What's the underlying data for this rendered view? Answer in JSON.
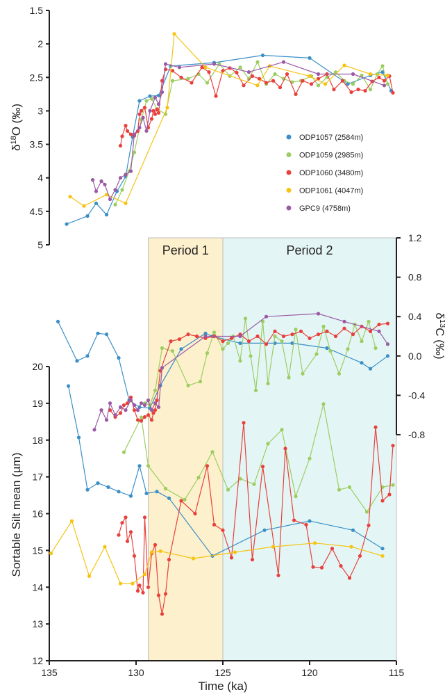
{
  "colors": {
    "ODP1057": "#3a8fc7",
    "ODP1059": "#9ccd61",
    "ODP1060": "#e8403c",
    "ODP1061": "#f6c312",
    "GPC9": "#9b5aa5",
    "period1_fill": "#fdf0cc",
    "period2_fill": "#e3f6f5"
  },
  "chart_data": [
    {
      "type": "line",
      "panel": "d18O",
      "ylabel": "δ18O (‰)",
      "ylabel_base": "δ",
      "ylabel_sup": "18",
      "ylabel_rest": "O (‰)",
      "ylim": [
        1.5,
        5
      ],
      "y_inverted": true,
      "yticks": [
        "1.5",
        "2",
        "2.5",
        "3",
        "3.5",
        "4",
        "4.5",
        "5"
      ],
      "legend_position": "right",
      "legend": [
        "ODP1057 (2584m)",
        "ODP1059 (2985m)",
        "ODP1060 (3480m)",
        "ODP1061 (4047m)",
        "GPC9 (4758m)"
      ],
      "series": [
        {
          "key": "ODP1057",
          "name": "ODP1057 (2584m)",
          "x": [
            134,
            132.8,
            132.3,
            131.7,
            131.1,
            130.6,
            130.2,
            129.8,
            129.2,
            128.7,
            128.0,
            125.5,
            122.7,
            120.0,
            117.8,
            116.5,
            115.8,
            115.3
          ],
          "y": [
            4.69,
            4.57,
            4.38,
            4.55,
            4.2,
            3.98,
            3.39,
            2.85,
            2.78,
            2.77,
            2.33,
            2.28,
            2.17,
            2.21,
            2.6,
            2.47,
            2.42,
            2.7
          ]
        },
        {
          "key": "ODP1059",
          "name": "ODP1059 (2985m)",
          "x": [
            131.2,
            130.8,
            130.4,
            130.1,
            129.7,
            129.4,
            129.1,
            128.8,
            128.3,
            127.9,
            127.0,
            126.4,
            125.9,
            125.2,
            124.6,
            124.0,
            123.5,
            123.0,
            122.5,
            122.0,
            121.5,
            121.0,
            120.5,
            119.9,
            119.5,
            119.0,
            118.5,
            118.0,
            117.5,
            117.0,
            116.5,
            116.1,
            115.8,
            115.5
          ],
          "y": [
            4.4,
            4.18,
            3.9,
            3.62,
            3.13,
            2.85,
            2.82,
            2.97,
            3.05,
            2.55,
            2.52,
            2.45,
            2.58,
            2.3,
            2.48,
            2.35,
            2.52,
            2.27,
            2.6,
            2.45,
            2.52,
            2.57,
            2.55,
            2.48,
            2.62,
            2.5,
            2.42,
            2.55,
            2.6,
            2.47,
            2.68,
            2.45,
            2.33,
            2.6
          ]
        },
        {
          "key": "ODP1060",
          "name": "ODP1060 (3480m)",
          "x": [
            130.9,
            130.8,
            130.6,
            130.5,
            130.3,
            130.1,
            129.9,
            129.8,
            129.7,
            129.5,
            129.3,
            129.1,
            129.0,
            128.9,
            128.8,
            128.7,
            128.5,
            128.3,
            127.9,
            127.4,
            126.8,
            126.2,
            125.8,
            125.4,
            125.0,
            124.6,
            124.2,
            123.8,
            123.3,
            122.9,
            122.5,
            122.1,
            121.7,
            121.3,
            120.8,
            120.4,
            119.9,
            119.5,
            119.0,
            118.6,
            118.1,
            117.6,
            117.2,
            116.8,
            116.4,
            116.0,
            115.7,
            115.4,
            115.2
          ],
          "y": [
            3.52,
            3.38,
            3.22,
            3.3,
            3.35,
            3.37,
            3.3,
            3.05,
            3.0,
            2.95,
            3.25,
            3.12,
            3.0,
            3.05,
            2.98,
            3.03,
            2.55,
            2.38,
            2.4,
            2.5,
            2.58,
            2.35,
            2.42,
            2.78,
            2.4,
            2.36,
            2.43,
            2.62,
            2.48,
            2.52,
            2.58,
            2.55,
            2.65,
            2.45,
            2.75,
            2.55,
            2.6,
            2.52,
            2.45,
            2.68,
            2.55,
            2.72,
            2.68,
            2.7,
            2.56,
            2.5,
            2.55,
            2.48,
            2.73
          ]
        },
        {
          "key": "ODP1061",
          "name": "ODP1061 (4047m)",
          "x": [
            133.8,
            133.0,
            131.7,
            130.6,
            128.2,
            127.8,
            126.0,
            123.0,
            122.3,
            120.0,
            119.1,
            118.0,
            116.5,
            115.5
          ],
          "y": [
            4.28,
            4.42,
            4.25,
            4.38,
            2.95,
            1.85,
            2.35,
            2.62,
            2.33,
            2.48,
            2.6,
            2.32,
            2.45,
            2.47
          ]
        },
        {
          "key": "GPC9",
          "name": "GPC9 (4758m)",
          "x": [
            132.5,
            132.3,
            132.0,
            131.8,
            131.5,
            131.2,
            130.9,
            130.6,
            130.3,
            130.1,
            129.8,
            129.6,
            129.4,
            129.2,
            128.9,
            128.7,
            128.5,
            128.3,
            127.5,
            125.5,
            123.5,
            121.5,
            119.5,
            117.5,
            115.7
          ],
          "y": [
            4.03,
            4.2,
            4.05,
            4.1,
            4.32,
            4.18,
            4.0,
            3.95,
            3.9,
            3.35,
            3.25,
            3.1,
            3.3,
            3.0,
            2.8,
            2.9,
            2.72,
            2.3,
            2.35,
            2.3,
            2.42,
            2.27,
            2.45,
            2.45,
            2.62
          ]
        }
      ]
    },
    {
      "type": "line",
      "panel": "d13C",
      "ylabel": "δ13C (‰)",
      "ylabel_base": "δ",
      "ylabel_sup": "13",
      "ylabel_rest": "C (‰)",
      "ylim": [
        -0.8,
        1.2
      ],
      "yticks": [
        "-0.8",
        "-0.4",
        "0.0",
        "0.4",
        "0.8",
        "1.2"
      ],
      "axis_side": "right",
      "series": [
        {
          "key": "ODP1057",
          "name": "ODP1057 (2584m)",
          "x": [
            134.5,
            133.4,
            132.8,
            132.2,
            131.7,
            131.0,
            130.4,
            129.8,
            129.2,
            128.6,
            127.4,
            126.0,
            125.6,
            124.0,
            122.0,
            121.0,
            119.0,
            117.0,
            116.5,
            115.5
          ],
          "y": [
            0.35,
            -0.05,
            0.0,
            0.23,
            0.22,
            -0.02,
            -0.45,
            -0.52,
            -0.53,
            -0.3,
            0.07,
            0.23,
            0.2,
            0.13,
            0.13,
            0.13,
            0.08,
            -0.07,
            -0.13,
            0.0
          ]
        },
        {
          "key": "ODP1059",
          "name": "ODP1059 (2985m)",
          "x": [
            129.5,
            129.2,
            128.9,
            128.5,
            127.9,
            127.0,
            126.3,
            125.9,
            125.5,
            125.0,
            124.7,
            124.4,
            124.0,
            123.7,
            123.4,
            123.1,
            122.7,
            122.4,
            122.0,
            121.6,
            121.2,
            120.8,
            120.4,
            119.6,
            119.2,
            118.8,
            118.3,
            117.8,
            117.4,
            117.0,
            116.6,
            116.2
          ],
          "y": [
            -0.48,
            -0.5,
            -0.35,
            0.08,
            0.05,
            -0.3,
            -0.26,
            0.03,
            0.24,
            0.07,
            0.13,
            0.2,
            -0.05,
            0.38,
            0.0,
            -0.35,
            0.35,
            -0.28,
            0.2,
            0.15,
            -0.22,
            0.27,
            -0.18,
            0.02,
            0.3,
            0.05,
            -0.18,
            0.07,
            0.32,
            0.15,
            0.35,
            0.08
          ]
        },
        {
          "key": "ODP1060",
          "name": "ODP1060 (3480m)",
          "x": [
            131.5,
            131.2,
            130.9,
            130.7,
            130.5,
            130.3,
            130.1,
            129.9,
            129.7,
            129.5,
            129.3,
            129.1,
            129.0,
            128.9,
            128.8,
            128.6,
            128.0,
            127.5,
            127.0,
            126.5,
            126.0,
            125.5,
            125.0,
            124.5,
            124.0,
            123.5,
            123.0,
            122.5,
            122.0,
            121.5,
            121.0,
            120.5,
            120.0,
            119.5,
            119.0,
            118.5,
            118.0,
            117.5,
            117.0,
            116.5,
            116.0,
            115.5
          ],
          "y": [
            -0.55,
            -0.62,
            -0.58,
            -0.5,
            -0.48,
            -0.42,
            -0.55,
            -0.65,
            -0.66,
            -0.62,
            -0.6,
            -0.65,
            -0.58,
            -0.55,
            -0.45,
            -0.15,
            0.15,
            0.17,
            0.22,
            0.2,
            0.18,
            0.2,
            0.15,
            0.18,
            0.22,
            0.15,
            0.2,
            0.12,
            0.25,
            0.2,
            0.22,
            0.25,
            0.18,
            0.22,
            0.25,
            0.2,
            0.28,
            0.22,
            0.3,
            0.25,
            0.32,
            0.33
          ]
        },
        {
          "key": "GPC9",
          "name": "GPC9 (4758m)",
          "x": [
            132.4,
            132.0,
            131.7,
            131.5,
            131.2,
            130.9,
            130.6,
            130.3,
            130.1,
            129.9,
            129.7,
            129.5,
            129.3,
            129.1,
            128.9,
            128.7,
            128.5,
            126.0,
            124.0,
            122.5,
            119.5,
            118.0,
            116.0,
            115.5
          ],
          "y": [
            -0.75,
            -0.55,
            -0.65,
            -0.48,
            -0.6,
            -0.52,
            -0.55,
            -0.45,
            -0.5,
            -0.55,
            -0.48,
            -0.5,
            -0.45,
            -0.55,
            -0.48,
            -0.52,
            -0.12,
            0.2,
            0.2,
            0.4,
            0.43,
            0.35,
            0.25,
            0.12
          ]
        }
      ]
    },
    {
      "type": "line",
      "panel": "silt",
      "ylabel": "Sortable Silt mean (µm)",
      "xlabel": "Time (ka)",
      "ylim": [
        12,
        20
      ],
      "yticks": [
        "12",
        "13",
        "14",
        "15",
        "16",
        "17",
        "18",
        "19",
        "20"
      ],
      "xlim": [
        135,
        115
      ],
      "xticks": [
        "135",
        "130",
        "125",
        "120",
        "115"
      ],
      "periods": [
        {
          "label": "Period 1",
          "x_start": 129.3,
          "x_end": 125.0
        },
        {
          "label": "Period 2",
          "x_start": 125.0,
          "x_end": 115.0
        }
      ],
      "series": [
        {
          "key": "ODP1057",
          "name": "ODP1057 (2584m)",
          "x": [
            133.9,
            133.3,
            132.8,
            132.2,
            131.6,
            131.0,
            130.3,
            129.8,
            129.4,
            128.8,
            128.1,
            125.6,
            122.6,
            120.0,
            117.5,
            115.8
          ],
          "y": [
            19.47,
            18.07,
            16.65,
            16.83,
            16.72,
            16.6,
            16.48,
            17.3,
            16.55,
            16.6,
            16.42,
            14.85,
            15.55,
            15.8,
            15.55,
            15.05
          ]
        },
        {
          "key": "ODP1059",
          "name": "ODP1059 (2985m)",
          "x": [
            130.7,
            129.7,
            129.3,
            128.3,
            127.2,
            126.4,
            125.6,
            124.7,
            124.0,
            123.2,
            122.4,
            121.6,
            120.8,
            120.0,
            119.2,
            118.3,
            117.7,
            116.7,
            115.8,
            115.2
          ],
          "y": [
            17.67,
            18.62,
            17.3,
            16.68,
            16.38,
            16.98,
            17.68,
            16.65,
            16.95,
            16.8,
            17.9,
            18.28,
            16.47,
            17.5,
            18.98,
            16.65,
            16.72,
            16.05,
            16.72,
            16.78
          ]
        },
        {
          "key": "ODP1060",
          "name": "ODP1060 (3480m)",
          "x": [
            131.0,
            130.8,
            130.6,
            130.5,
            130.3,
            130.1,
            129.9,
            129.8,
            129.6,
            129.5,
            129.3,
            129.1,
            128.9,
            128.7,
            128.5,
            128.3,
            128.1,
            127.4,
            126.6,
            125.9,
            125.5,
            125.0,
            124.5,
            123.8,
            123.3,
            122.7,
            121.8,
            121.4,
            120.9,
            120.2,
            119.8,
            119.3,
            118.7,
            118.2,
            117.7,
            117.1,
            116.6,
            116.2,
            115.8,
            115.4,
            115.2
          ],
          "y": [
            15.42,
            15.75,
            15.9,
            15.25,
            15.5,
            14.85,
            13.9,
            14.05,
            13.85,
            15.9,
            14.0,
            14.92,
            15.15,
            13.78,
            13.27,
            13.82,
            14.75,
            16.35,
            16.0,
            17.3,
            15.7,
            15.55,
            14.8,
            18.47,
            14.75,
            17.28,
            14.32,
            17.77,
            15.82,
            15.7,
            14.55,
            14.53,
            15.05,
            14.58,
            14.25,
            14.85,
            15.68,
            18.35,
            16.35,
            16.52,
            17.85
          ]
        },
        {
          "key": "ODP1061",
          "name": "ODP1061 (4047m)",
          "x": [
            134.9,
            133.7,
            132.7,
            131.8,
            130.9,
            130.2,
            129.5,
            129.1,
            128.6,
            126.7,
            124.3,
            122.1,
            119.7,
            117.6,
            115.8
          ],
          "y": [
            14.92,
            15.8,
            14.3,
            15.1,
            14.1,
            14.1,
            14.35,
            14.95,
            14.98,
            14.78,
            14.95,
            15.1,
            15.2,
            15.1,
            14.85
          ]
        },
        {
          "key": "GPC9",
          "name": "GPC9 (4758m)",
          "x": [],
          "y": []
        }
      ]
    }
  ]
}
